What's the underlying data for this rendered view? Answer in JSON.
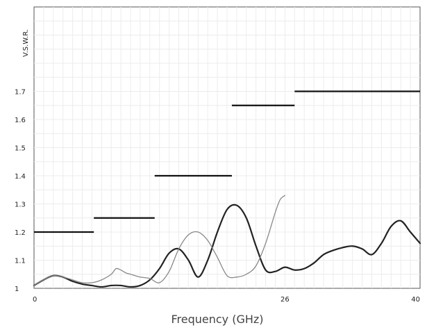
{
  "chart_data": {
    "type": "line",
    "xlabel": "Frequency (GHz)",
    "ylabel": "V.S.W.R.",
    "xlim": [
      0,
      40
    ],
    "ylim": [
      1.0,
      2.0
    ],
    "x_ticks": [
      {
        "value": 0,
        "label": "0"
      },
      {
        "value": 26,
        "label": "26"
      },
      {
        "value": 40,
        "label": "40"
      }
    ],
    "y_ticks": [
      {
        "value": 1.0,
        "label": "1"
      },
      {
        "value": 1.1,
        "label": "1.1"
      },
      {
        "value": 1.2,
        "label": "1.2"
      },
      {
        "value": 1.3,
        "label": "1.3"
      },
      {
        "value": 1.4,
        "label": "1.4"
      },
      {
        "value": 1.5,
        "label": "1.5"
      },
      {
        "value": 1.6,
        "label": "1.6"
      },
      {
        "value": 1.7,
        "label": "1.7"
      }
    ],
    "grid": true,
    "limit_lines": [
      {
        "x_start": 0,
        "x_end": 6.2,
        "y": 1.2
      },
      {
        "x_start": 6.2,
        "x_end": 12.5,
        "y": 1.25
      },
      {
        "x_start": 12.5,
        "x_end": 20.5,
        "y": 1.4
      },
      {
        "x_start": 20.5,
        "x_end": 27,
        "y": 1.65
      },
      {
        "x_start": 27,
        "x_end": 40,
        "y": 1.7
      }
    ],
    "series": [
      {
        "color": "#222222",
        "x": [
          0,
          1,
          2,
          3,
          4,
          5,
          6,
          7,
          8,
          9,
          10,
          11,
          12,
          13,
          14,
          15,
          16,
          17,
          18,
          19,
          20,
          21,
          22,
          23,
          24,
          25,
          26,
          27,
          28,
          29,
          30,
          31,
          32,
          33,
          34,
          35,
          36,
          37,
          38,
          39,
          40
        ],
        "values": [
          1.01,
          1.03,
          1.045,
          1.04,
          1.025,
          1.015,
          1.01,
          1.005,
          1.01,
          1.01,
          1.005,
          1.01,
          1.03,
          1.07,
          1.125,
          1.14,
          1.1,
          1.04,
          1.1,
          1.2,
          1.28,
          1.295,
          1.25,
          1.15,
          1.065,
          1.06,
          1.075,
          1.065,
          1.07,
          1.09,
          1.12,
          1.135,
          1.145,
          1.15,
          1.14,
          1.12,
          1.16,
          1.22,
          1.24,
          1.2,
          1.16
        ]
      },
      {
        "color": "#888888",
        "x": [
          0,
          1,
          2,
          3,
          4,
          5,
          6,
          7,
          8,
          8.5,
          9,
          9.5,
          10,
          11,
          12,
          13,
          14,
          15,
          16,
          17,
          18,
          19,
          20,
          21,
          22,
          23,
          24,
          25,
          25.5,
          26
        ],
        "values": [
          1.01,
          1.03,
          1.045,
          1.04,
          1.03,
          1.02,
          1.02,
          1.03,
          1.05,
          1.07,
          1.065,
          1.055,
          1.05,
          1.04,
          1.035,
          1.02,
          1.06,
          1.14,
          1.19,
          1.2,
          1.17,
          1.11,
          1.045,
          1.04,
          1.05,
          1.08,
          1.16,
          1.27,
          1.315,
          1.33
        ]
      }
    ]
  }
}
